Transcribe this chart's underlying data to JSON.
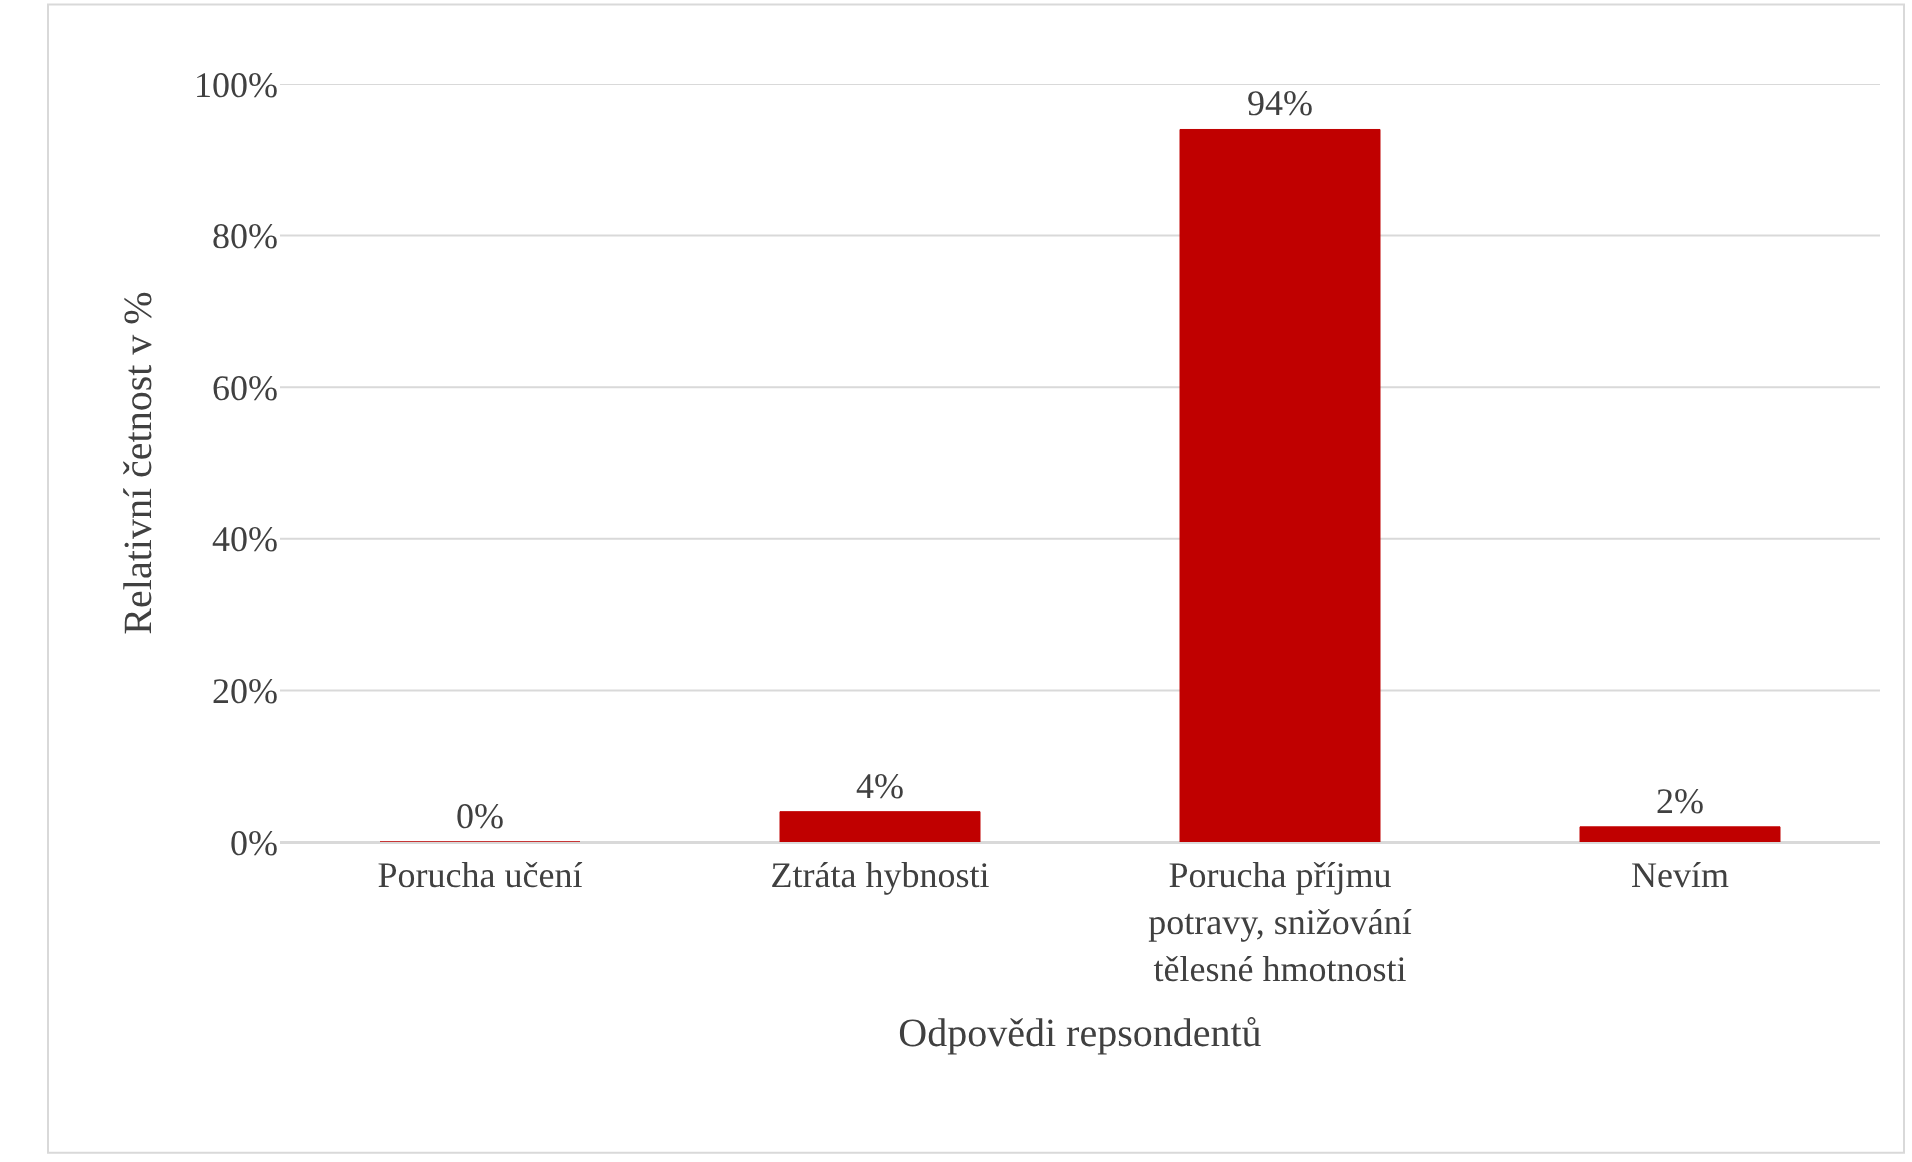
{
  "chart_data": {
    "type": "bar",
    "xlabel": "Odpovědi repsondentů",
    "ylabel": "Relativní četnost v %",
    "categories": [
      "Porucha učení",
      "Ztráta hybnosti",
      "Porucha příjmu potravy, snižování tělesné hmotnosti",
      "Nevím"
    ],
    "values": [
      0,
      4,
      94,
      2
    ],
    "color": "#c00000",
    "value_labels": [
      "0%",
      "4%",
      "94%",
      "2%"
    ],
    "ylim": [
      0,
      100
    ],
    "yticks": [
      {
        "value": 0,
        "label": "0%"
      },
      {
        "value": 20,
        "label": "20%"
      },
      {
        "value": 40,
        "label": "40%"
      },
      {
        "value": 60,
        "label": "60%"
      },
      {
        "value": 80,
        "label": "80%"
      },
      {
        "value": 100,
        "label": "100%"
      }
    ],
    "grid": "y",
    "legend": false
  }
}
